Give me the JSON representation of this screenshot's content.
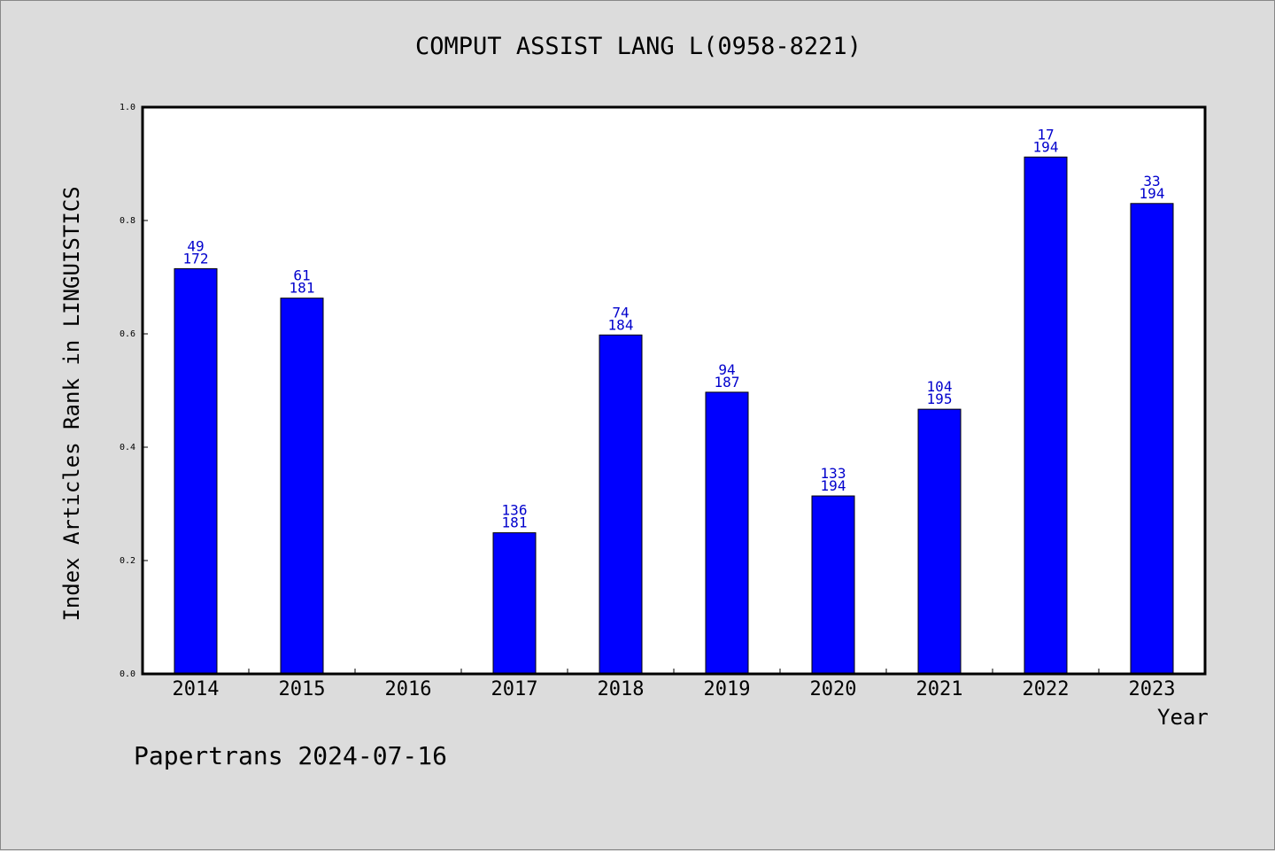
{
  "chart_data": {
    "type": "bar",
    "title": "COMPUT ASSIST LANG L(0958-8221)",
    "xlabel": "Year",
    "ylabel": "Index Articles Rank in LINGUISTICS",
    "ylim": [
      0.0,
      1.0
    ],
    "yticks": [
      "0.0",
      "0.2",
      "0.4",
      "0.6",
      "0.8",
      "1.0"
    ],
    "categories": [
      "2014",
      "2015",
      "2016",
      "2017",
      "2018",
      "2019",
      "2020",
      "2021",
      "2022",
      "2023"
    ],
    "values": [
      0.715,
      0.663,
      null,
      0.249,
      0.598,
      0.497,
      0.314,
      0.467,
      0.912,
      0.83
    ],
    "rank": [
      "49",
      "61",
      "",
      "136",
      "74",
      "94",
      "133",
      "104",
      "17",
      "33"
    ],
    "total": [
      "172",
      "181",
      "",
      "181",
      "184",
      "187",
      "194",
      "195",
      "194",
      "194"
    ],
    "bar_color": "#0000ff",
    "label_color": "#0000cc",
    "grid": false
  },
  "footer": "Papertrans 2024-07-16"
}
